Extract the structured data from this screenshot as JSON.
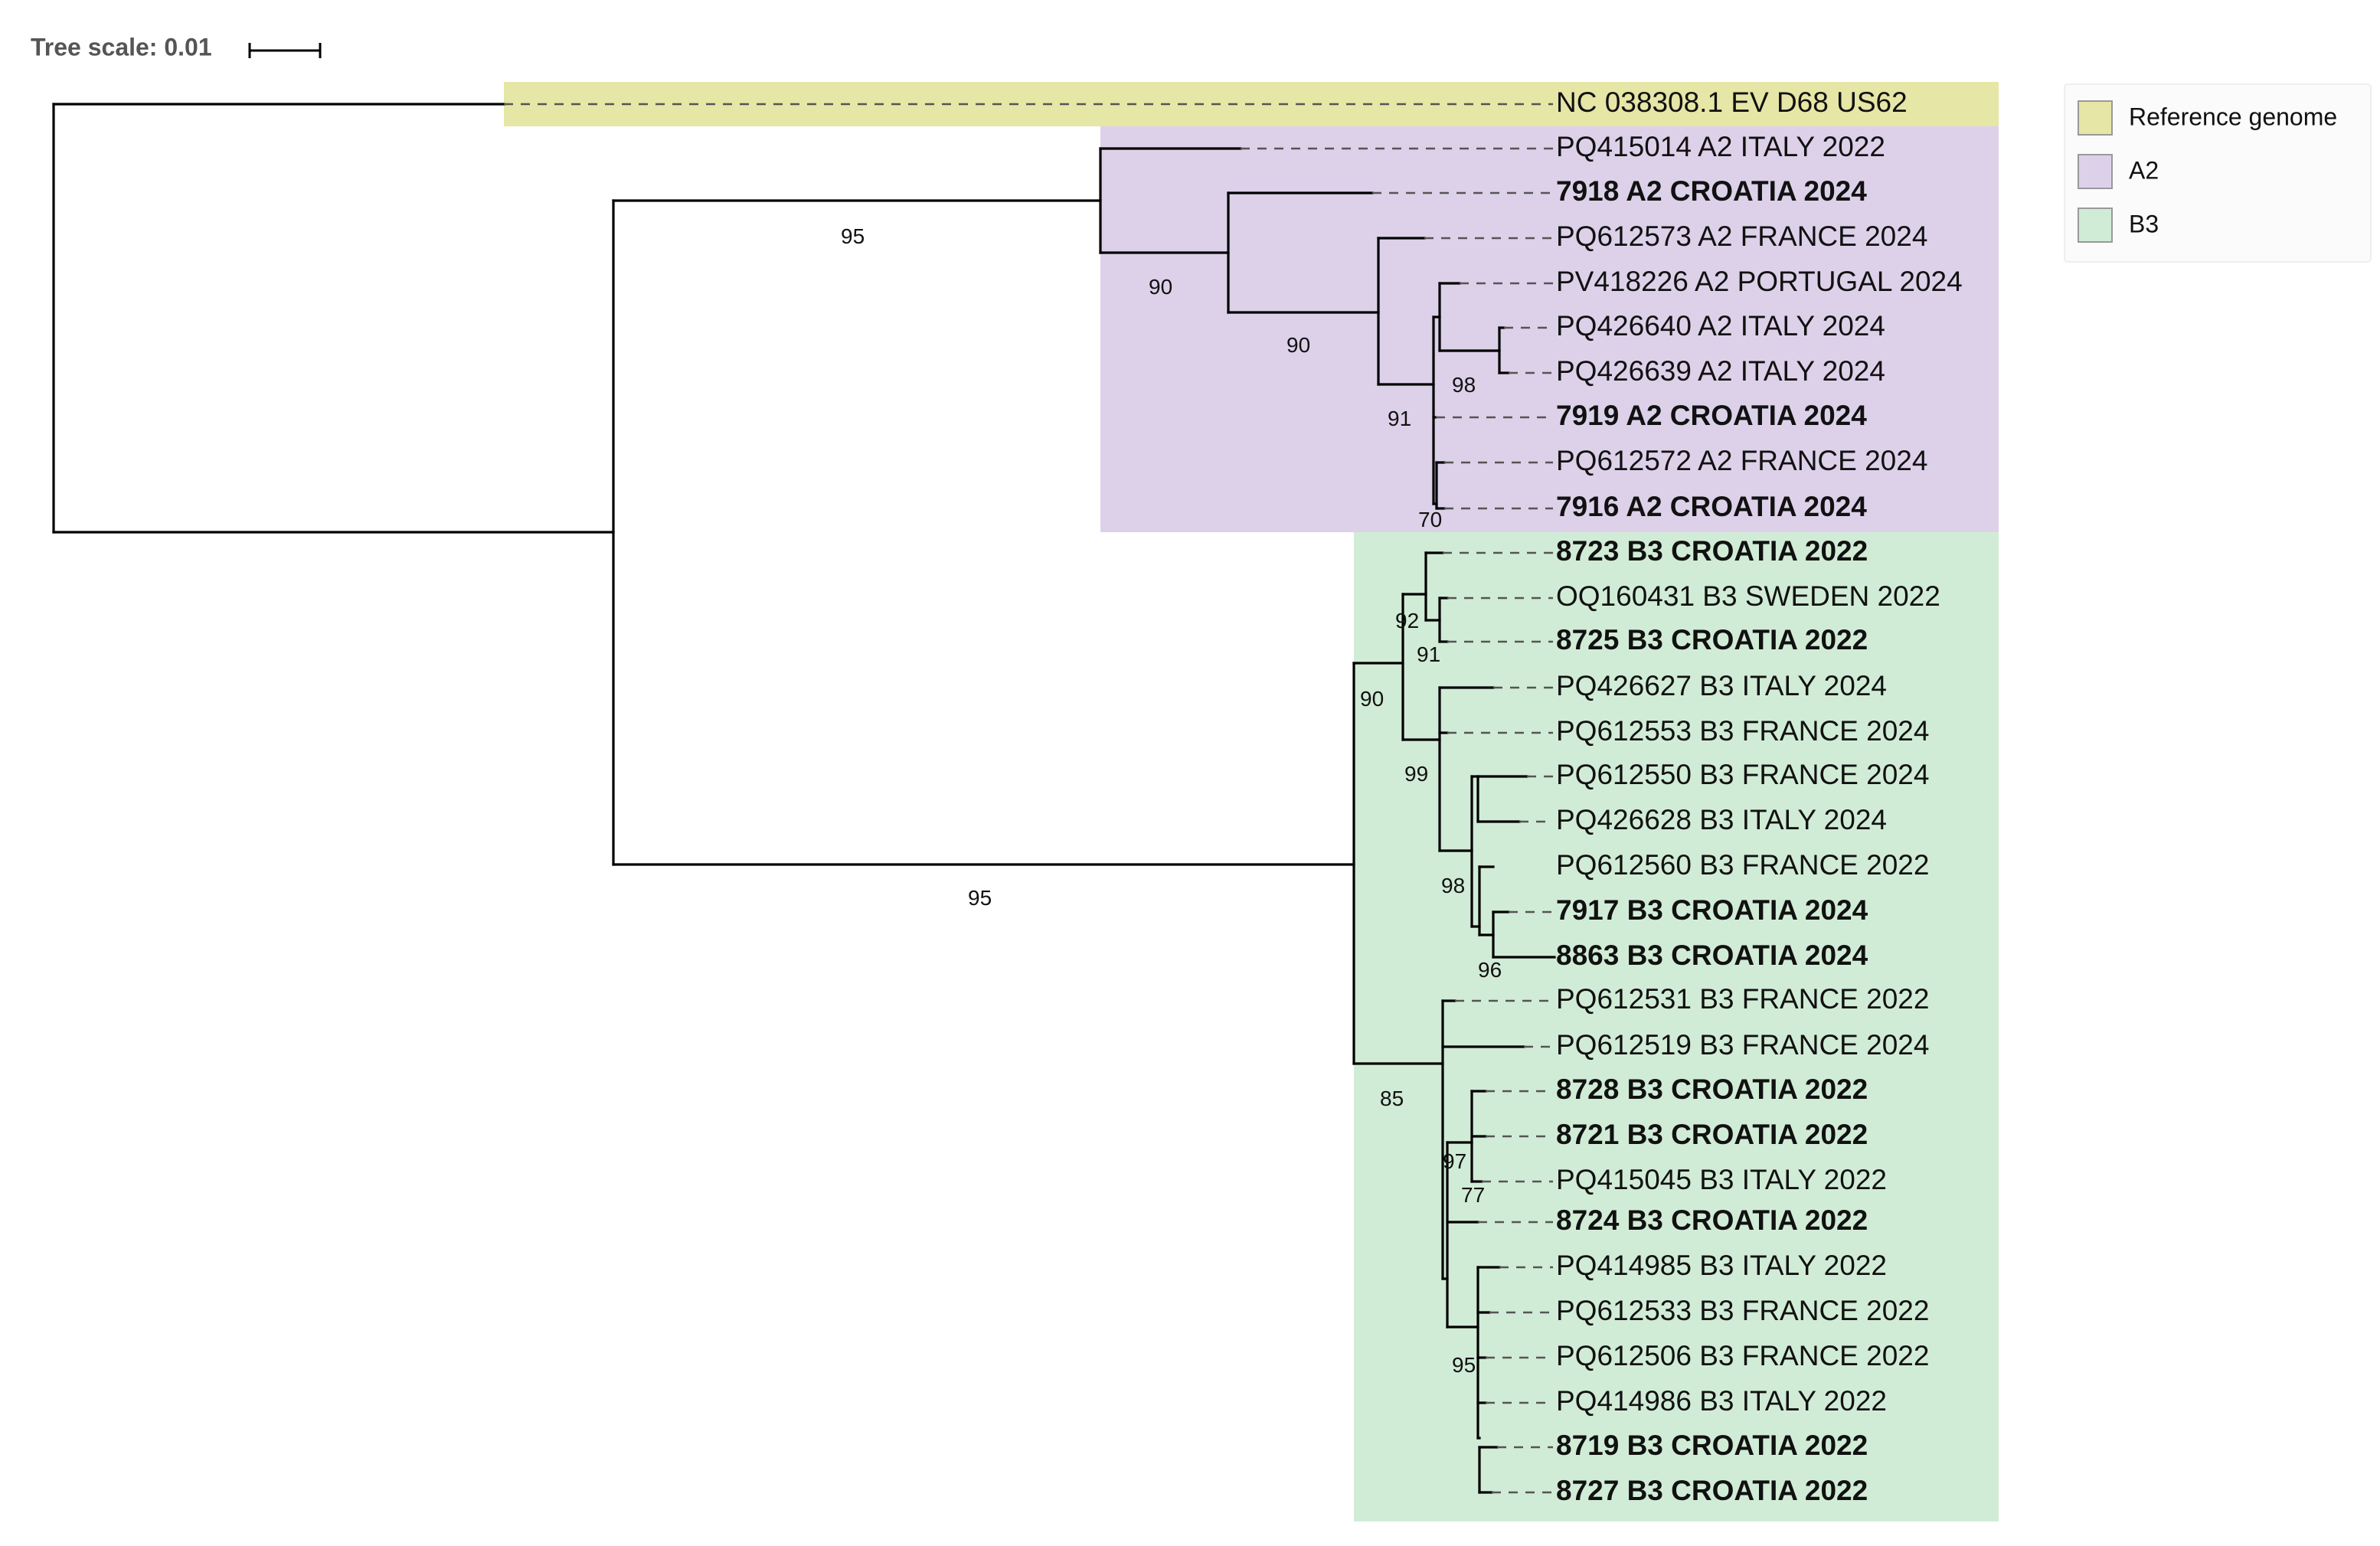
{
  "scale": {
    "label": "Tree scale: 0.01"
  },
  "colors": {
    "reference": "#e6e6a6",
    "a2": "#ddd1ea",
    "b3": "#d1ecd6",
    "branch": "#000000",
    "leader": "#555555"
  },
  "legend": [
    {
      "label": "Reference genome",
      "color": "#e6e6a6"
    },
    {
      "label": "A2",
      "color": "#ddd1ea"
    },
    {
      "label": "B3",
      "color": "#d1ecd6"
    }
  ],
  "leaves": [
    {
      "label": "NC 038308.1 EV D68 US62",
      "bold": false,
      "group": "reference"
    },
    {
      "label": "PQ415014 A2 ITALY 2022",
      "bold": false,
      "group": "A2"
    },
    {
      "label": "7918 A2 CROATIA 2024",
      "bold": true,
      "group": "A2"
    },
    {
      "label": "PQ612573 A2 FRANCE 2024",
      "bold": false,
      "group": "A2"
    },
    {
      "label": "PV418226 A2 PORTUGAL 2024",
      "bold": false,
      "group": "A2"
    },
    {
      "label": "PQ426640 A2 ITALY 2024",
      "bold": false,
      "group": "A2"
    },
    {
      "label": "PQ426639 A2 ITALY 2024",
      "bold": false,
      "group": "A2"
    },
    {
      "label": "7919 A2 CROATIA 2024",
      "bold": true,
      "group": "A2"
    },
    {
      "label": "PQ612572 A2 FRANCE 2024",
      "bold": false,
      "group": "A2"
    },
    {
      "label": "7916 A2 CROATIA 2024",
      "bold": true,
      "group": "A2"
    },
    {
      "label": "8723 B3 CROATIA 2022",
      "bold": true,
      "group": "B3"
    },
    {
      "label": "OQ160431 B3 SWEDEN 2022",
      "bold": false,
      "group": "B3"
    },
    {
      "label": "8725 B3 CROATIA 2022",
      "bold": true,
      "group": "B3"
    },
    {
      "label": "PQ426627 B3 ITALY 2024",
      "bold": false,
      "group": "B3"
    },
    {
      "label": "PQ612553 B3 FRANCE 2024",
      "bold": false,
      "group": "B3"
    },
    {
      "label": "PQ612550 B3 FRANCE 2024",
      "bold": false,
      "group": "B3"
    },
    {
      "label": "PQ426628 B3 ITALY 2024",
      "bold": false,
      "group": "B3"
    },
    {
      "label": "PQ612560 B3 FRANCE 2022",
      "bold": false,
      "group": "B3"
    },
    {
      "label": "7917 B3 CROATIA 2024",
      "bold": true,
      "group": "B3"
    },
    {
      "label": "8863 B3 CROATIA 2024",
      "bold": true,
      "group": "B3"
    },
    {
      "label": "PQ612531 B3 FRANCE 2022",
      "bold": false,
      "group": "B3"
    },
    {
      "label": "PQ612519 B3 FRANCE 2024",
      "bold": false,
      "group": "B3"
    },
    {
      "label": "8728 B3 CROATIA 2022",
      "bold": true,
      "group": "B3"
    },
    {
      "label": "8721 B3 CROATIA 2022",
      "bold": true,
      "group": "B3"
    },
    {
      "label": "PQ415045 B3 ITALY 2022",
      "bold": false,
      "group": "B3"
    },
    {
      "label": "8724 B3 CROATIA 2022",
      "bold": true,
      "group": "B3"
    },
    {
      "label": "PQ414985 B3 ITALY 2022",
      "bold": false,
      "group": "B3"
    },
    {
      "label": "PQ612533 B3 FRANCE 2022",
      "bold": false,
      "group": "B3"
    },
    {
      "label": "PQ612506 B3 FRANCE 2022",
      "bold": false,
      "group": "B3"
    },
    {
      "label": "PQ414986 B3 ITALY 2022",
      "bold": false,
      "group": "B3"
    },
    {
      "label": "8719 B3 CROATIA 2022",
      "bold": true,
      "group": "B3"
    },
    {
      "label": "8727 B3 CROATIA 2022",
      "bold": true,
      "group": "B3"
    }
  ],
  "bootstrap": [
    "95",
    "90",
    "90",
    "98",
    "91",
    "70",
    "95",
    "92",
    "91",
    "90",
    "99",
    "98",
    "96",
    "85",
    "97",
    "77",
    "95"
  ]
}
